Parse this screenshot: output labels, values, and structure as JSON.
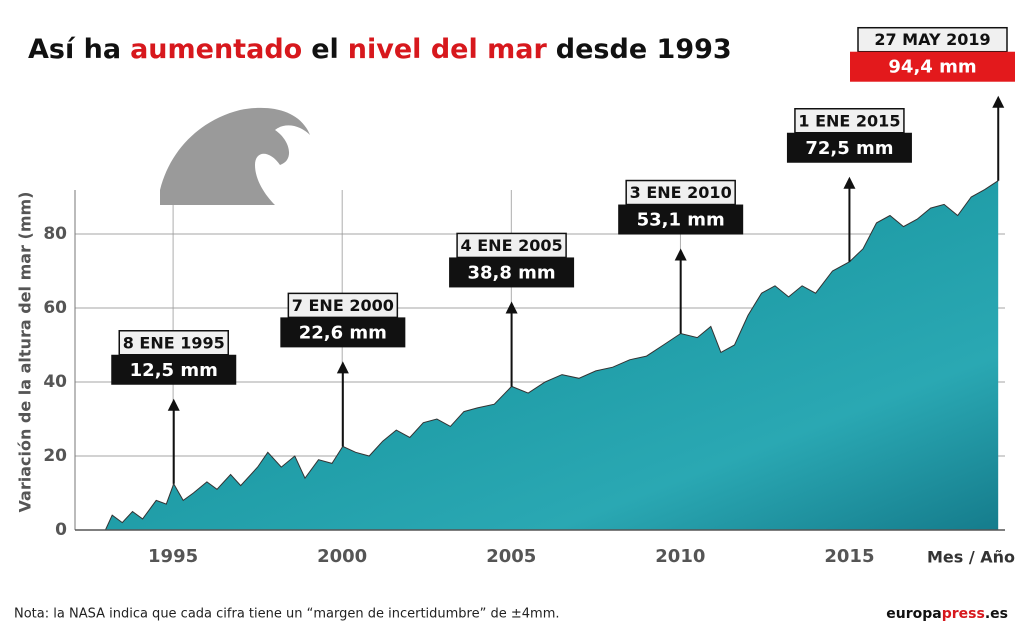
{
  "chart_data": {
    "type": "area",
    "title_parts": [
      {
        "text": "Así ha",
        "color": "#111111"
      },
      {
        "text": "aumentado",
        "color": "#d7181d"
      },
      {
        "text": "el",
        "color": "#111111"
      },
      {
        "text": "nivel del mar",
        "color": "#d7181d"
      },
      {
        "text": "desde 1993",
        "color": "#111111"
      }
    ],
    "y_label": "Variación de la altura del mar (mm)",
    "x_label": "Mes / Año",
    "x": [
      1993.0,
      1993.2,
      1993.5,
      1993.8,
      1994.1,
      1994.5,
      1994.8,
      1995.02,
      1995.3,
      1995.6,
      1996.0,
      1996.3,
      1996.7,
      1997.0,
      1997.5,
      1997.8,
      1998.2,
      1998.6,
      1998.9,
      1999.3,
      1999.7,
      2000.02,
      2000.4,
      2000.8,
      2001.2,
      2001.6,
      2002.0,
      2002.4,
      2002.8,
      2003.2,
      2003.6,
      2004.0,
      2004.5,
      2005.01,
      2005.5,
      2006.0,
      2006.5,
      2007.0,
      2007.5,
      2008.0,
      2008.5,
      2009.0,
      2009.5,
      2010.01,
      2010.5,
      2010.9,
      2011.2,
      2011.6,
      2012.0,
      2012.4,
      2012.8,
      2013.2,
      2013.6,
      2014.0,
      2014.5,
      2015.0,
      2015.4,
      2015.8,
      2016.2,
      2016.6,
      2017.0,
      2017.4,
      2017.8,
      2018.2,
      2018.6,
      2019.0,
      2019.4
    ],
    "values": [
      0,
      4,
      2,
      5,
      3,
      8,
      7,
      12.5,
      8,
      10,
      13,
      11,
      15,
      12,
      17,
      21,
      17,
      20,
      14,
      19,
      18,
      22.6,
      21,
      20,
      24,
      27,
      25,
      29,
      30,
      28,
      32,
      33,
      34,
      38.8,
      37,
      40,
      42,
      41,
      43,
      44,
      46,
      47,
      50,
      53.1,
      52,
      55,
      48,
      50,
      58,
      64,
      66,
      63,
      66,
      64,
      70,
      72.5,
      76,
      83,
      85,
      82,
      84,
      87,
      88,
      85,
      90,
      92,
      94.4
    ],
    "xlim": [
      1992.1,
      2019.6
    ],
    "ylim": [
      0,
      95
    ],
    "xticks": [
      1995,
      2000,
      2005,
      2010,
      2015
    ],
    "yticks": [
      0,
      20,
      40,
      60,
      80
    ],
    "grid": true,
    "color": "#1e8f9c",
    "annotations": [
      {
        "date": "8 ENE 1995",
        "x": 1995.02,
        "value": 12.5,
        "label": "12,5 mm",
        "color": "#111111"
      },
      {
        "date": "7 ENE 2000",
        "x": 2000.02,
        "value": 22.6,
        "label": "22,6 mm",
        "color": "#111111"
      },
      {
        "date": "4 ENE 2005",
        "x": 2005.01,
        "value": 38.8,
        "label": "38,8 mm",
        "color": "#111111"
      },
      {
        "date": "3 ENE 2010",
        "x": 2010.01,
        "value": 53.1,
        "label": "53,1 mm",
        "color": "#111111"
      },
      {
        "date": "1 ENE 2015",
        "x": 2015.0,
        "value": 72.5,
        "label": "72,5 mm",
        "color": "#111111"
      },
      {
        "date": "27 MAY 2019",
        "x": 2019.4,
        "value": 94.4,
        "label": "94,4 mm",
        "color": "#e3191c"
      }
    ],
    "note": "Nota: la NASA indica que cada cifra tiene un “margen de incertidumbre” de ±4mm.",
    "source_parts": [
      {
        "text": "europa",
        "color": "#111111"
      },
      {
        "text": "press",
        "color": "#d7181d"
      },
      {
        "text": ".es",
        "color": "#111111"
      }
    ]
  }
}
